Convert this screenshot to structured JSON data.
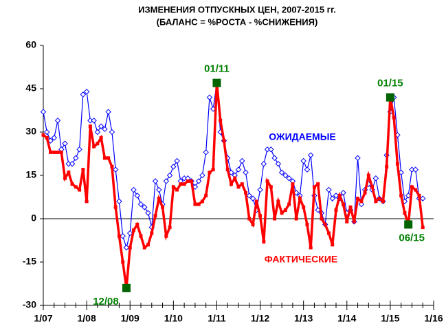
{
  "chart_data": {
    "type": "line",
    "title": "ИЗМЕНЕНИЯ ОТПУСКНЫХ ЦЕН, 2007-2015  гг.",
    "subtitle": "(БАЛАНС = %РОСТА - %СНИЖЕНИЯ)",
    "categories": [
      "1/07",
      null,
      null,
      null,
      null,
      null,
      null,
      null,
      null,
      null,
      null,
      null,
      "1/08",
      null,
      null,
      null,
      null,
      null,
      null,
      null,
      null,
      null,
      null,
      null,
      "1/09",
      null,
      null,
      null,
      null,
      null,
      null,
      null,
      null,
      null,
      null,
      null,
      "1/10",
      null,
      null,
      null,
      null,
      null,
      null,
      null,
      null,
      null,
      null,
      null,
      "1/11",
      null,
      null,
      null,
      null,
      null,
      null,
      null,
      null,
      null,
      null,
      null,
      "1/12",
      null,
      null,
      null,
      null,
      null,
      null,
      null,
      null,
      null,
      null,
      null,
      "1/13",
      null,
      null,
      null,
      null,
      null,
      null,
      null,
      null,
      null,
      null,
      null,
      "1/14",
      null,
      null,
      null,
      null,
      null,
      null,
      null,
      null,
      null,
      null,
      null,
      "1/15",
      null,
      null,
      null,
      null,
      null,
      null,
      null,
      null,
      null,
      null,
      null,
      "1/16"
    ],
    "series": [
      {
        "name": "ОЖИДАЕМЫЕ",
        "color": "#0000ff",
        "values": [
          37,
          30,
          27,
          28,
          34,
          24,
          26,
          19,
          19,
          21,
          24,
          43,
          44,
          34,
          34,
          30,
          32,
          31,
          37,
          30,
          17,
          6,
          -6,
          -10,
          -5,
          10,
          8,
          5,
          4,
          2,
          -3,
          13,
          10,
          5,
          13,
          15,
          18,
          20,
          13,
          14,
          14,
          13,
          11,
          13,
          15,
          23,
          42,
          38,
          47,
          30,
          27,
          21,
          16,
          15,
          17,
          20,
          16,
          8,
          7,
          3,
          10,
          19,
          24,
          24,
          21,
          19,
          16,
          15,
          14,
          13,
          9,
          8,
          20,
          17,
          22,
          8,
          3,
          2,
          -2,
          10,
          7,
          8,
          7,
          9,
          2,
          3,
          -1,
          21,
          5,
          10,
          12,
          10,
          14,
          7,
          6,
          22,
          37,
          42,
          29,
          16,
          6,
          8,
          17,
          17,
          7,
          7,
          null,
          null,
          null
        ]
      },
      {
        "name": "ФАКТИЧЕСКИЕ",
        "color": "#ff0000",
        "values": [
          29,
          28,
          23,
          23,
          23,
          23,
          14,
          16,
          12,
          11,
          10,
          17,
          6,
          32,
          25,
          26,
          28,
          21,
          21,
          18,
          4,
          -6,
          -15,
          -24,
          -10,
          -4,
          -2,
          -6,
          -10,
          -9,
          -5,
          1,
          7,
          4,
          -6,
          -3,
          11,
          10,
          12,
          12,
          13,
          13,
          5,
          5,
          6,
          8,
          16,
          17,
          47,
          34,
          27,
          17,
          12,
          14,
          11,
          12,
          9,
          0,
          -2,
          6,
          1,
          -8,
          13,
          11,
          0,
          6,
          2,
          3,
          5,
          12,
          0,
          7,
          4,
          -2,
          -10,
          11,
          12,
          0,
          -2,
          -5,
          -9,
          3,
          8,
          5,
          -1,
          4,
          -1,
          7,
          6,
          9,
          15,
          11,
          6,
          7,
          6,
          18,
          42,
          35,
          19,
          8,
          2,
          -2,
          11,
          10,
          8,
          -3,
          null,
          null,
          null
        ]
      }
    ],
    "annotations": [
      "01/11",
      "12/08",
      "01/15",
      "06/15"
    ],
    "ylim": [
      -30,
      60
    ],
    "yticks": [
      -30,
      -15,
      0,
      15,
      30,
      45,
      60
    ]
  }
}
